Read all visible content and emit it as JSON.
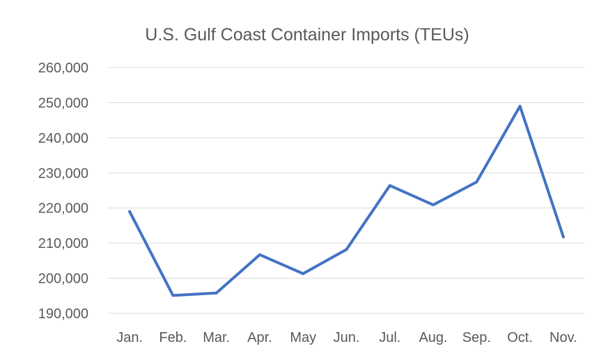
{
  "chart_data": {
    "type": "line",
    "title": "U.S. Gulf Coast Container Imports (TEUs)",
    "xlabel": "",
    "ylabel": "",
    "categories": [
      "Jan.",
      "Feb.",
      "Mar.",
      "Apr.",
      "May",
      "Jun.",
      "Jul.",
      "Aug.",
      "Sep.",
      "Oct.",
      "Nov."
    ],
    "series": [
      {
        "values": [
          219000,
          195100,
          195800,
          206700,
          201300,
          208200,
          226400,
          220900,
          227400,
          249000,
          211800
        ],
        "color": "#4472c4"
      }
    ],
    "ylim": [
      190000,
      260000
    ],
    "yticks": [
      190000,
      200000,
      210000,
      220000,
      230000,
      240000,
      250000,
      260000
    ],
    "ytick_labels": [
      "190,000",
      "200,000",
      "210,000",
      "220,000",
      "230,000",
      "240,000",
      "250,000",
      "260,000"
    ],
    "grid": true,
    "legend": "none"
  }
}
